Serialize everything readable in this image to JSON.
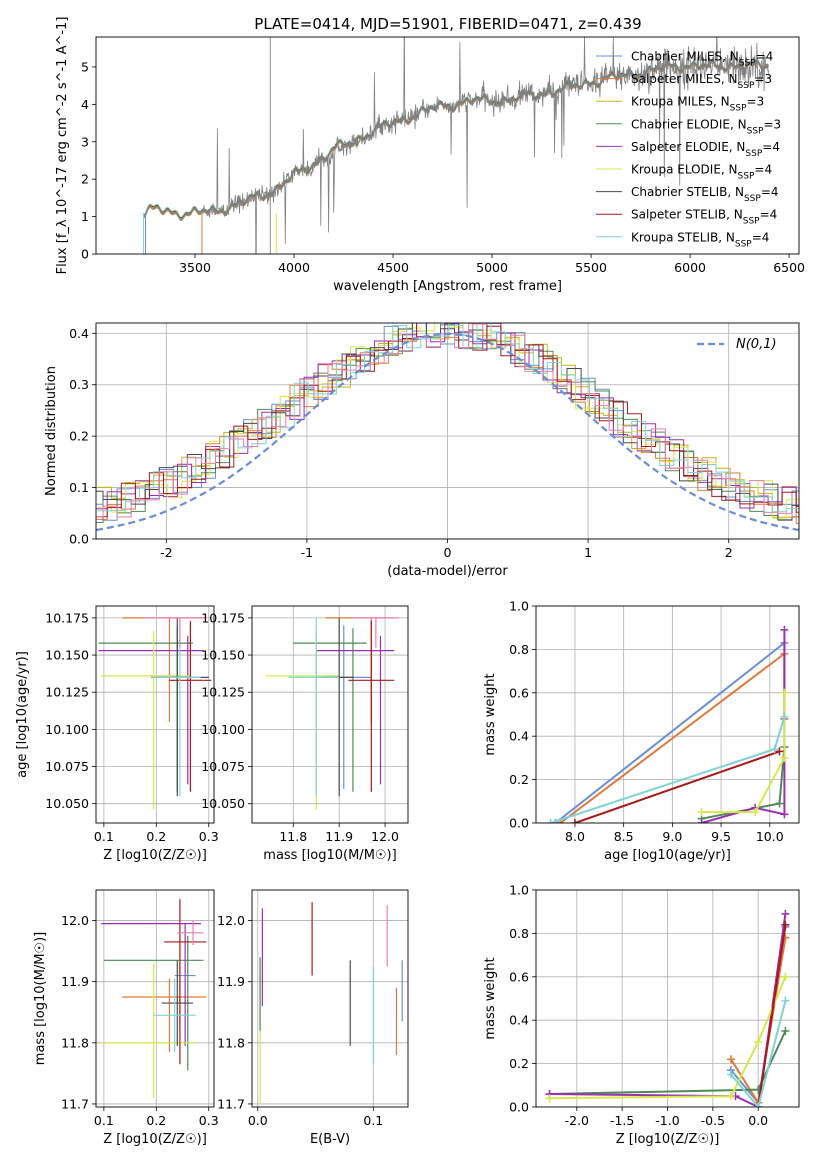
{
  "figure": {
    "title": "PLATE=0414, MJD=51901, FIBERID=0471, z=0.439"
  },
  "colors": {
    "Chabrier MILES": "#6a8fd8",
    "Salpeter MILES": "#e0793a",
    "Kroupa MILES": "#c9b21c",
    "Chabrier ELODIE": "#4d8a55",
    "Salpeter ELODIE": "#9b2fb5",
    "Kroupa ELODIE": "#d6e84a",
    "Chabrier STELIB": "#4a4a4a",
    "Salpeter STELIB": "#a81818",
    "Kroupa STELIB": "#7fd3d6",
    "pink": "#e77fb0"
  },
  "chart_data": [
    {
      "type": "line",
      "title": "PLATE=0414, MJD=51901, FIBERID=0471, z=0.439",
      "xlabel": "wavelength [Angstrom, rest frame]",
      "ylabel": "Flux [f_λ 10^-17 erg cm^-2 s^-1 A^-1]",
      "xlim": [
        3000,
        6550
      ],
      "ylim": [
        0,
        5.8
      ],
      "xticks": [
        3500,
        4000,
        4500,
        5000,
        5500,
        6000,
        6500
      ],
      "yticks": [
        0,
        1,
        2,
        3,
        4,
        5
      ],
      "spectrum_anchor_x": [
        3240,
        3300,
        3350,
        3400,
        3500,
        3600,
        3700,
        3800,
        3900,
        4000,
        4100,
        4200,
        4300,
        4400,
        4500,
        4600,
        4700,
        4800,
        4900,
        5000,
        5100,
        5200,
        5300,
        5400,
        5500,
        5600,
        5700,
        5800,
        5900,
        6000,
        6100,
        6200,
        6300,
        6400
      ],
      "spectrum_anchor_y": [
        1.1,
        1.2,
        1.15,
        1.1,
        1.1,
        1.15,
        1.3,
        1.5,
        1.7,
        2.1,
        2.4,
        2.8,
        3.0,
        3.3,
        3.5,
        3.7,
        3.9,
        4.0,
        4.1,
        4.1,
        4.15,
        4.25,
        4.35,
        4.45,
        4.6,
        4.7,
        4.8,
        4.9,
        5.0,
        5.05,
        5.0,
        5.05,
        5.0,
        5.05
      ],
      "legend": [
        {
          "name": "Chabrier MILES",
          "nssp": "4"
        },
        {
          "name": "Salpeter MILES",
          "nssp": "3"
        },
        {
          "name": "Kroupa MILES",
          "nssp": "3"
        },
        {
          "name": "Chabrier ELODIE",
          "nssp": "3"
        },
        {
          "name": "Salpeter ELODIE",
          "nssp": "4"
        },
        {
          "name": "Kroupa ELODIE",
          "nssp": "4"
        },
        {
          "name": "Chabrier STELIB",
          "nssp": "4"
        },
        {
          "name": "Salpeter STELIB",
          "nssp": "4"
        },
        {
          "name": "Kroupa STELIB",
          "nssp": "4"
        }
      ]
    },
    {
      "type": "area",
      "xlabel": "(data-model)/error",
      "ylabel": "Normed distribution",
      "xlim": [
        -2.5,
        2.5
      ],
      "ylim": [
        0,
        0.42
      ],
      "xticks": [
        -2,
        -1,
        0,
        1,
        2
      ],
      "yticks": [
        0.0,
        0.1,
        0.2,
        0.3,
        0.4
      ],
      "bin_edges": [
        -2.5,
        2.5
      ],
      "bin_width": 0.1,
      "legend": [
        {
          "name": "N(0,1)",
          "style": "dashed"
        }
      ],
      "gaussian": {
        "mean": 0,
        "sigma": 1
      }
    },
    {
      "type": "scatter",
      "xlabel": "Z [log10(Z/Z☉)]",
      "ylabel": "age  [log10(age/yr)]",
      "xlim": [
        0.085,
        0.31
      ],
      "ylim": [
        10.037,
        10.183
      ],
      "xticks": [
        0.1,
        0.2,
        0.3
      ],
      "yticks": [
        10.05,
        10.075,
        10.1,
        10.125,
        10.15,
        10.175
      ],
      "points": [
        {
          "series": "Chabrier MILES",
          "x": 0.24,
          "y": 10.135,
          "xerr": [
            0.05,
            0.03
          ],
          "yerr": [
            0.075,
            0.035
          ]
        },
        {
          "series": "Salpeter MILES",
          "x": 0.225,
          "y": 10.175,
          "xerr": [
            0.09,
            0.07
          ],
          "yerr": [
            0.07,
            0.0
          ]
        },
        {
          "series": "Chabrier ELODIE",
          "x": 0.24,
          "y": 10.158,
          "xerr": [
            0.15,
            0.03
          ],
          "yerr": [
            0.1,
            0.01
          ]
        },
        {
          "series": "Salpeter ELODIE",
          "x": 0.26,
          "y": 10.153,
          "xerr": [
            0.17,
            0.03
          ],
          "yerr": [
            0.09,
            0.01
          ]
        },
        {
          "series": "Kroupa ELODIE",
          "x": 0.195,
          "y": 10.136,
          "xerr": [
            0.1,
            0.07
          ],
          "yerr": [
            0.09,
            0.03
          ]
        },
        {
          "series": "Chabrier STELIB",
          "x": 0.24,
          "y": 10.135,
          "xerr": [
            0.04,
            0.06
          ],
          "yerr": [
            0.08,
            0.04
          ]
        },
        {
          "series": "Salpeter STELIB",
          "x": 0.265,
          "y": 10.133,
          "xerr": [
            0.04,
            0.04
          ],
          "yerr": [
            0.075,
            0.04
          ]
        },
        {
          "series": "Kroupa STELIB",
          "x": 0.245,
          "y": 10.135,
          "xerr": [
            0.05,
            0.04
          ],
          "yerr": [
            0.08,
            0.04
          ]
        },
        {
          "series": "pink",
          "x": 0.245,
          "y": 10.175,
          "xerr": [
            0.07,
            0.05
          ],
          "yerr": [
            0.02,
            0.0
          ]
        }
      ]
    },
    {
      "type": "scatter",
      "xlabel": "mass [log10(M/M☉)]",
      "xlim": [
        11.71,
        12.05
      ],
      "ylim": [
        10.037,
        10.183
      ],
      "xticks": [
        11.8,
        11.9,
        12.0
      ],
      "yticks": [
        10.05,
        10.075,
        10.1,
        10.125,
        10.15,
        10.175
      ],
      "points": [
        {
          "series": "Chabrier MILES",
          "x": 11.91,
          "y": 10.135,
          "xerr": [
            0.06,
            0.06
          ],
          "yerr": [
            0.075,
            0.035
          ]
        },
        {
          "series": "Salpeter MILES",
          "x": 11.97,
          "y": 10.175,
          "xerr": [
            0.1,
            0.04
          ],
          "yerr": [
            0.07,
            0.0
          ]
        },
        {
          "series": "Chabrier ELODIE",
          "x": 11.93,
          "y": 10.158,
          "xerr": [
            0.13,
            0.03
          ],
          "yerr": [
            0.1,
            0.01
          ]
        },
        {
          "series": "Salpeter ELODIE",
          "x": 11.99,
          "y": 10.153,
          "xerr": [
            0.14,
            0.03
          ],
          "yerr": [
            0.09,
            0.01
          ]
        },
        {
          "series": "Kroupa ELODIE",
          "x": 11.85,
          "y": 10.136,
          "xerr": [
            0.11,
            0.05
          ],
          "yerr": [
            0.09,
            0.03
          ]
        },
        {
          "series": "Chabrier STELIB",
          "x": 11.9,
          "y": 10.135,
          "xerr": [
            0.03,
            0.03
          ],
          "yerr": [
            0.08,
            0.04
          ]
        },
        {
          "series": "Salpeter STELIB",
          "x": 11.97,
          "y": 10.133,
          "xerr": [
            0.05,
            0.05
          ],
          "yerr": [
            0.075,
            0.04
          ]
        },
        {
          "series": "Kroupa STELIB",
          "x": 11.85,
          "y": 10.135,
          "xerr": [
            0.06,
            0.05
          ],
          "yerr": [
            0.08,
            0.04
          ]
        },
        {
          "series": "pink",
          "x": 11.98,
          "y": 10.175,
          "xerr": [
            0.05,
            0.05
          ],
          "yerr": [
            0.02,
            0.0
          ]
        }
      ]
    },
    {
      "type": "line",
      "xlabel": "age  [log10(age/yr)]",
      "ylabel": "mass weight",
      "xlim": [
        7.6,
        10.3
      ],
      "ylim": [
        0,
        1.0
      ],
      "xticks": [
        8.0,
        8.5,
        9.0,
        9.5,
        10.0
      ],
      "yticks": [
        0.0,
        0.2,
        0.4,
        0.6,
        0.8,
        1.0
      ],
      "series": [
        {
          "name": "Chabrier MILES",
          "x": [
            7.8,
            10.15,
            10.15
          ],
          "y": [
            0.0,
            0.83,
            0.48
          ]
        },
        {
          "name": "Salpeter MILES",
          "x": [
            7.85,
            10.15,
            10.15
          ],
          "y": [
            0.0,
            0.78,
            0.48
          ]
        },
        {
          "name": "Chabrier ELODIE",
          "x": [
            9.3,
            10.1,
            10.15
          ],
          "y": [
            0.02,
            0.09,
            0.35
          ]
        },
        {
          "name": "Salpeter ELODIE",
          "x": [
            9.3,
            9.85,
            10.15,
            10.15
          ],
          "y": [
            0.0,
            0.07,
            0.04,
            0.89
          ]
        },
        {
          "name": "Kroupa ELODIE",
          "x": [
            9.3,
            9.85,
            10.15,
            10.15
          ],
          "y": [
            0.05,
            0.05,
            0.3,
            0.6
          ]
        },
        {
          "name": "Salpeter STELIB",
          "x": [
            8.0,
            10.1
          ],
          "y": [
            0.0,
            0.33
          ]
        },
        {
          "name": "Kroupa STELIB",
          "x": [
            7.75,
            10.05,
            10.15
          ],
          "y": [
            0.0,
            0.34,
            0.49
          ]
        }
      ]
    },
    {
      "type": "scatter",
      "xlabel": "Z [log10(Z/Z☉)]",
      "ylabel": "mass [log10(M/M☉)]",
      "xlim": [
        0.085,
        0.31
      ],
      "ylim": [
        11.695,
        12.05
      ],
      "xticks": [
        0.1,
        0.2,
        0.3
      ],
      "yticks": [
        11.7,
        11.8,
        11.9,
        12.0
      ],
      "points": [
        {
          "series": "Chabrier MILES",
          "x": 0.245,
          "y": 11.91,
          "xerr": [
            0.01,
            0.03
          ],
          "yerr": [
            0.09,
            0.02
          ]
        },
        {
          "series": "Salpeter MILES",
          "x": 0.225,
          "y": 11.875,
          "xerr": [
            0.09,
            0.07
          ],
          "yerr": [
            0.09,
            0.03
          ]
        },
        {
          "series": "Chabrier ELODIE",
          "x": 0.26,
          "y": 11.935,
          "xerr": [
            0.16,
            0.03
          ],
          "yerr": [
            0.18,
            0.04
          ]
        },
        {
          "series": "Salpeter ELODIE",
          "x": 0.255,
          "y": 11.995,
          "xerr": [
            0.16,
            0.03
          ],
          "yerr": [
            0.2,
            0.0
          ]
        },
        {
          "series": "Kroupa ELODIE",
          "x": 0.195,
          "y": 11.8,
          "xerr": [
            0.1,
            0.08
          ],
          "yerr": [
            0.09,
            0.13
          ]
        },
        {
          "series": "Chabrier STELIB",
          "x": 0.24,
          "y": 11.865,
          "xerr": [
            0.03,
            0.03
          ],
          "yerr": [
            0.07,
            0.07
          ]
        },
        {
          "series": "Salpeter STELIB",
          "x": 0.245,
          "y": 11.965,
          "xerr": [
            0.03,
            0.05
          ],
          "yerr": [
            0.2,
            0.07
          ]
        },
        {
          "series": "Kroupa STELIB",
          "x": 0.235,
          "y": 11.845,
          "xerr": [
            0.04,
            0.04
          ],
          "yerr": [
            0.06,
            0.06
          ]
        },
        {
          "series": "pink",
          "x": 0.27,
          "y": 11.98,
          "xerr": [
            0.03,
            0.02
          ],
          "yerr": [
            0.02,
            0.02
          ]
        }
      ]
    },
    {
      "type": "scatter",
      "xlabel": "E(B-V)",
      "xlim": [
        -0.005,
        0.13
      ],
      "ylim": [
        11.695,
        12.05
      ],
      "xticks": [
        0.0,
        0.1
      ],
      "yticks": [
        11.7,
        11.8,
        11.9,
        12.0
      ],
      "points": [
        {
          "series": "Salpeter ELODIE",
          "x": 0.004,
          "y": 11.95,
          "yerr": [
            0.09,
            0.07
          ]
        },
        {
          "series": "Kroupa ELODIE",
          "x": 0.002,
          "y": 11.8,
          "yerr": [
            0.1,
            0.13
          ]
        },
        {
          "series": "Chabrier ELODIE",
          "x": 0.002,
          "y": 11.92,
          "yerr": [
            0.1,
            0.02
          ]
        },
        {
          "series": "Salpeter STELIB",
          "x": 0.047,
          "y": 11.97,
          "yerr": [
            0.06,
            0.06
          ]
        },
        {
          "series": "Chabrier STELIB",
          "x": 0.08,
          "y": 11.865,
          "yerr": [
            0.07,
            0.07
          ]
        },
        {
          "series": "Kroupa STELIB",
          "x": 0.1,
          "y": 11.845,
          "yerr": [
            0.08,
            0.08
          ]
        },
        {
          "series": "pink",
          "x": 0.112,
          "y": 11.975,
          "yerr": [
            0.05,
            0.05
          ]
        },
        {
          "series": "Salpeter MILES",
          "x": 0.12,
          "y": 11.83,
          "yerr": [
            0.05,
            0.06
          ]
        },
        {
          "series": "Chabrier MILES",
          "x": 0.125,
          "y": 11.885,
          "yerr": [
            0.05,
            0.05
          ]
        }
      ]
    },
    {
      "type": "line",
      "xlabel": "Z [log10(Z/Z☉)]",
      "ylabel": "mass weight",
      "xlim": [
        -2.45,
        0.45
      ],
      "ylim": [
        0,
        1.0
      ],
      "xticks": [
        -2.0,
        -1.5,
        -1.0,
        -0.5,
        0.0
      ],
      "yticks": [
        0.0,
        0.2,
        0.4,
        0.6,
        0.8,
        1.0
      ],
      "series": [
        {
          "name": "Chabrier MILES",
          "x": [
            -0.3,
            0.0,
            0.3
          ],
          "y": [
            0.17,
            0.02,
            0.83
          ]
        },
        {
          "name": "Salpeter MILES",
          "x": [
            -0.3,
            0.0,
            0.3
          ],
          "y": [
            0.22,
            0.02,
            0.78
          ]
        },
        {
          "name": "Chabrier ELODIE",
          "x": [
            -2.3,
            0.0,
            0.3
          ],
          "y": [
            0.06,
            0.08,
            0.35
          ]
        },
        {
          "name": "Salpeter ELODIE",
          "x": [
            -2.3,
            -0.25,
            0.0,
            0.3
          ],
          "y": [
            0.06,
            0.05,
            0.0,
            0.89
          ]
        },
        {
          "name": "Kroupa ELODIE",
          "x": [
            -2.3,
            -0.3,
            0.0,
            0.3
          ],
          "y": [
            0.04,
            0.05,
            0.3,
            0.6
          ]
        },
        {
          "name": "Salpeter STELIB",
          "x": [
            0.0,
            0.3
          ],
          "y": [
            0.0,
            0.84
          ]
        },
        {
          "name": "Kroupa STELIB",
          "x": [
            -0.3,
            0.0,
            0.3
          ],
          "y": [
            0.15,
            0.0,
            0.49
          ]
        }
      ]
    }
  ]
}
